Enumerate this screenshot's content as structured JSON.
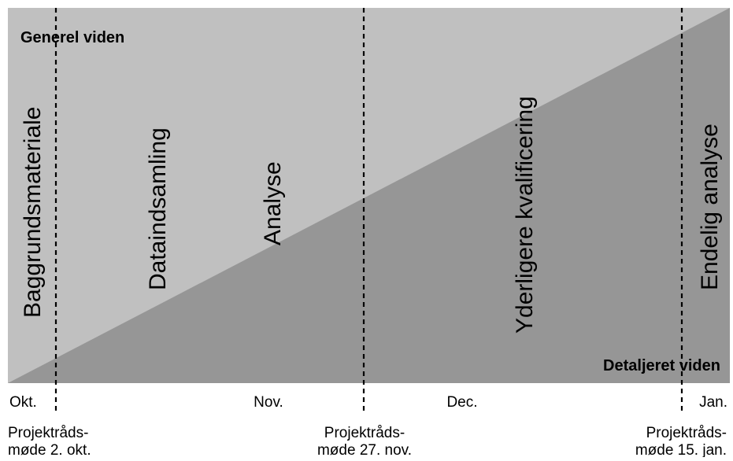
{
  "corner_labels": {
    "top_left": "Generel viden",
    "bottom_right": "Detaljeret viden"
  },
  "phases": [
    "Baggrundsmateriale",
    "Dataindsamling",
    "Analyse",
    "Yderligere kvalificering",
    "Endelig analyse"
  ],
  "months": [
    "Okt.",
    "Nov.",
    "Dec.",
    "Jan."
  ],
  "meetings": [
    {
      "line1": "Projektråds-",
      "line2": "møde 2. okt."
    },
    {
      "line1": "Projektråds-",
      "line2": "møde 27. nov."
    },
    {
      "line1": "Projektråds-",
      "line2": "møde 15. jan."
    }
  ],
  "colors": {
    "upper_region": "#c0c0c0",
    "lower_region": "#969696",
    "text": "#000000",
    "background": "#ffffff"
  }
}
